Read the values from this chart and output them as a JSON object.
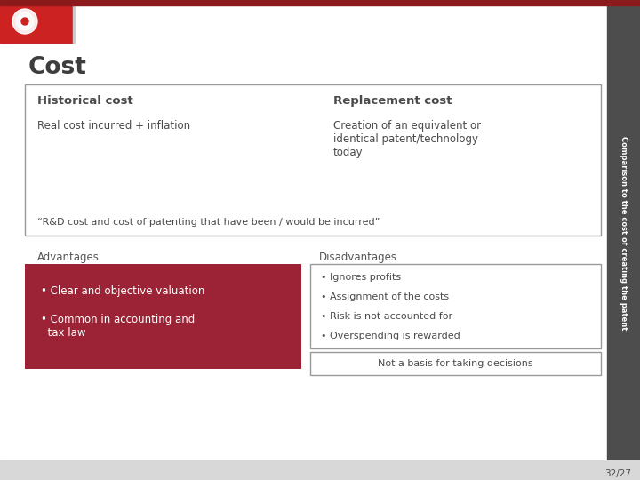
{
  "title": "Cost",
  "title_color": "#3d3d3d",
  "bg_color": "#ffffff",
  "sidebar_color": "#4d4d4d",
  "sidebar_text": "Comparison to the cost of creating the patent",
  "sidebar_text_color": "#ffffff",
  "top_bar_color": "#8b1a1a",
  "logo_bg": "#cc2222",
  "slide_number": "32/27",
  "upper_box": {
    "hist_label": "Historical cost",
    "hist_sub": "Real cost incurred + inflation",
    "rep_label": "Replacement cost",
    "rep_sub": "Creation of an equivalent or\nidentical patent/technology\ntoday",
    "quote": "“R&D cost and cost of patenting that have been / would be incurred”",
    "border_color": "#999999",
    "bg_color": "#ffffff"
  },
  "lower_left": {
    "label": "Advantages",
    "label_color": "#555555",
    "bg_color": "#9b2335",
    "text_color": "#ffffff",
    "items": [
      "Clear and objective valuation",
      "Common in accounting and\n  tax law"
    ]
  },
  "lower_right": {
    "label": "Disadvantages",
    "label_color": "#555555",
    "border_color": "#999999",
    "items": [
      "Ignores profits",
      "Assignment of the costs",
      "Risk is not accounted for",
      "Overspending is rewarded"
    ],
    "note": "Not a basis for taking decisions",
    "note_border_color": "#999999"
  },
  "text_color_dark": "#4a4a4a",
  "bottom_bar_color": "#d8d8d8"
}
